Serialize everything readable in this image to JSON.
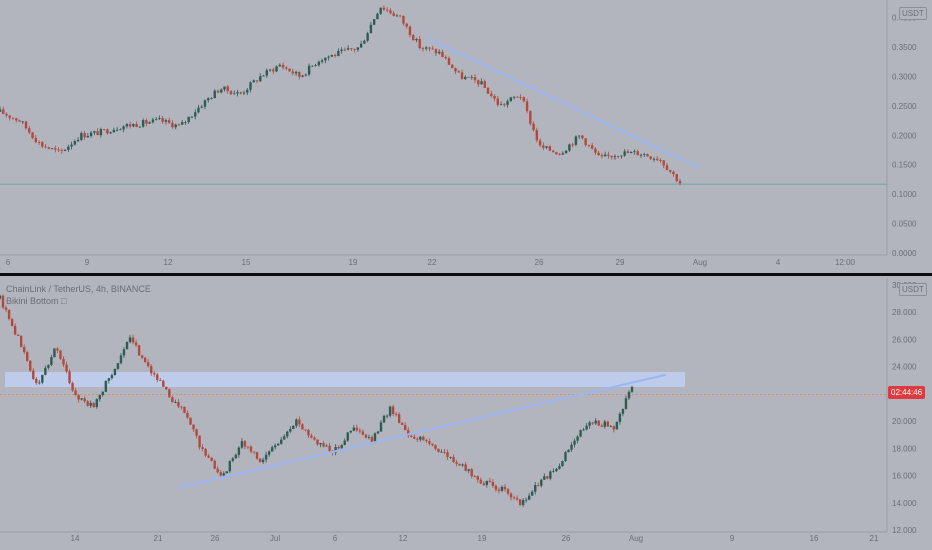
{
  "chart_data": [
    {
      "type": "candlestick",
      "title": "",
      "currency_badge": "USDT",
      "xlabel": "",
      "ylabel": "",
      "x_ticks": [
        "6",
        "9",
        "12",
        "15",
        "19",
        "22",
        "26",
        "29",
        "Aug",
        "4",
        "12:00"
      ],
      "y_ticks": [
        "0.4000",
        "0.3500",
        "0.3000",
        "0.2500",
        "0.2000",
        "0.1500",
        "0.1000",
        "0.0500",
        "0.0000"
      ],
      "ylim": [
        0.0,
        0.43
      ],
      "grid": false,
      "horizontal_line": 0.117,
      "trendline": [
        [
          0.365,
          0.145
        ]
      ],
      "colors": {
        "up": "#2e5c52",
        "down": "#b3483d",
        "trendline": "#9cb6f5",
        "hline": "#6aa7a8",
        "axis_text": "#6a6d78"
      },
      "close_path": [
        0.24,
        0.225,
        0.185,
        0.17,
        0.2,
        0.205,
        0.215,
        0.22,
        0.225,
        0.215,
        0.25,
        0.28,
        0.27,
        0.3,
        0.32,
        0.3,
        0.33,
        0.34,
        0.35,
        0.42,
        0.4,
        0.35,
        0.34,
        0.3,
        0.29,
        0.25,
        0.27,
        0.18,
        0.17,
        0.2,
        0.16,
        0.17,
        0.17,
        0.16,
        0.12
      ]
    },
    {
      "type": "candlestick",
      "title": "ChainLink / TetherUS, 4h, BINANCE",
      "indicator": "Bikini Bottom □",
      "currency_badge": "USDT",
      "xlabel": "",
      "ylabel": "",
      "x_ticks": [
        "14",
        "21",
        "26",
        "Jul",
        "6",
        "12",
        "19",
        "26",
        "Aug",
        "9",
        "16",
        "21"
      ],
      "y_ticks": [
        "30.000",
        "28.000",
        "26.000",
        "24.000",
        "22.000",
        "20.000",
        "18.000",
        "16.000",
        "14.000",
        "12.000"
      ],
      "ylim": [
        12.0,
        30.5
      ],
      "grid": false,
      "horizontal_line": 21.95,
      "current_price_label": "02:44:46",
      "zone": [
        22.5,
        23.6
      ],
      "trendline": [
        [
          15.1,
          23.4
        ]
      ],
      "colors": {
        "up": "#2e5c52",
        "down": "#b3483d",
        "trendline": "#9cb6f5",
        "zone": "#c0cff2",
        "hline": "#d98b6e",
        "axis_text": "#6a6d78"
      },
      "close_path": [
        29.0,
        26.0,
        22.5,
        25.5,
        22.0,
        21.0,
        23.5,
        26.0,
        24.0,
        22.0,
        20.5,
        17.5,
        16.0,
        18.5,
        17.0,
        18.5,
        20.0,
        18.5,
        17.8,
        19.5,
        18.5,
        21.0,
        19.0,
        18.5,
        17.5,
        16.5,
        15.5,
        15.0,
        13.8,
        15.5,
        16.5,
        19.0,
        20.0,
        19.5,
        22.5
      ]
    }
  ]
}
